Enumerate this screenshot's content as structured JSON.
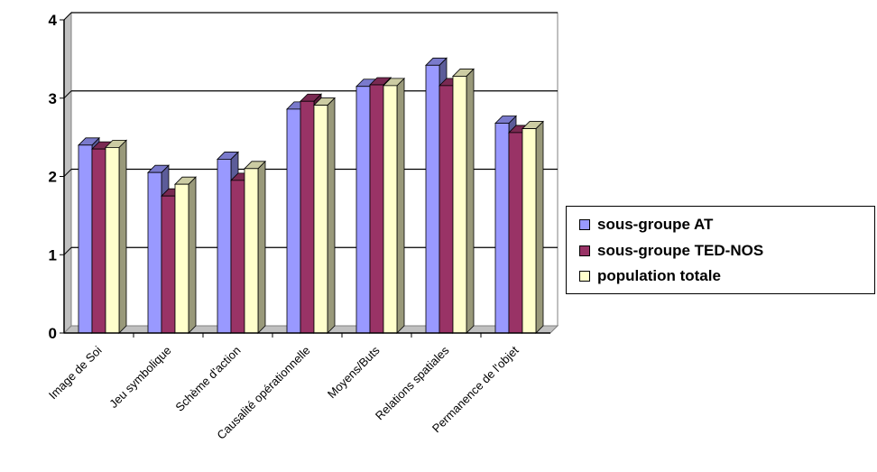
{
  "chart_data": {
    "type": "bar",
    "title": "",
    "xlabel": "",
    "ylabel": "",
    "ylim": [
      0,
      4
    ],
    "yticks": [
      "0",
      "1",
      "2",
      "3",
      "4"
    ],
    "grid": true,
    "legend_position": "right",
    "categories": [
      "Image de Soi",
      "Jeu symbolique",
      "Schème d'action",
      "Causalité opérationnelle",
      "Moyens/Buts",
      "Relations spatiales",
      "Permanence de l'objet"
    ],
    "series": [
      {
        "name": "sous-groupe AT",
        "color": "#9999ff",
        "values": [
          2.4,
          2.05,
          2.22,
          2.86,
          3.15,
          3.42,
          2.68
        ]
      },
      {
        "name": "sous-groupe TED-NOS",
        "color": "#993366",
        "values": [
          2.35,
          1.75,
          1.95,
          2.96,
          3.17,
          3.16,
          2.56
        ]
      },
      {
        "name": "population totale",
        "color": "#ffffcc",
        "values": [
          2.37,
          1.9,
          2.1,
          2.91,
          3.16,
          3.28,
          2.61
        ]
      }
    ]
  }
}
